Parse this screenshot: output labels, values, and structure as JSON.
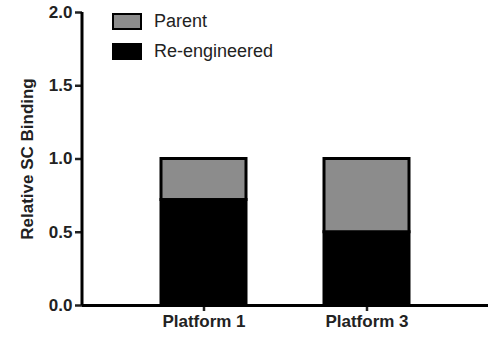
{
  "chart_data": {
    "type": "bar",
    "stacked": true,
    "categories": [
      "Platform 1",
      "Platform 3"
    ],
    "series": [
      {
        "name": "Parent",
        "color": "#8c8c8c",
        "values": [
          0.28,
          0.5
        ]
      },
      {
        "name": "Re-engineered",
        "color": "#000000",
        "values": [
          0.72,
          0.5
        ]
      }
    ],
    "y_label": "Relative SC Binding",
    "ylim": [
      0,
      2
    ],
    "yticks": [
      {
        "value": 0,
        "label": "0.0"
      },
      {
        "value": 0.5,
        "label": "0.5"
      },
      {
        "value": 1,
        "label": "1.0"
      },
      {
        "value": 1.5,
        "label": "1.5"
      },
      {
        "value": 2,
        "label": "2.0"
      }
    ],
    "legend": "top-left",
    "grid": false
  }
}
